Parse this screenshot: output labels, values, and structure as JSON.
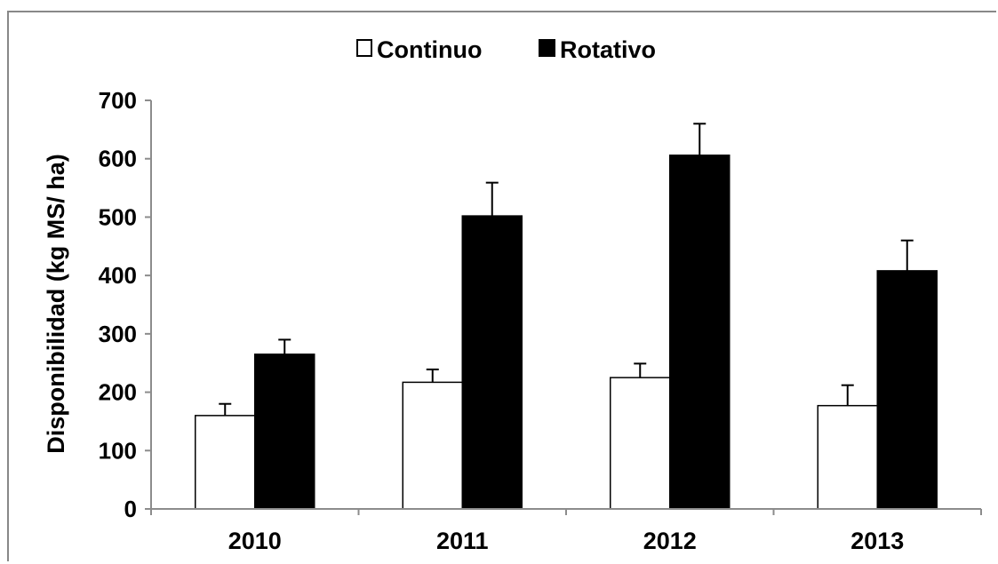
{
  "chart_data": {
    "type": "bar",
    "categories": [
      "2010",
      "2011",
      "2012",
      "2013"
    ],
    "series": [
      {
        "name": "Continuo",
        "values": [
          160,
          217,
          225,
          177
        ],
        "errors": [
          20,
          22,
          24,
          35
        ],
        "color": "#ffffff"
      },
      {
        "name": "Rotativo",
        "values": [
          265,
          502,
          606,
          408
        ],
        "errors": [
          25,
          57,
          54,
          52
        ],
        "color": "#000000"
      }
    ],
    "title": "",
    "xlabel": "",
    "ylabel": "Disponibilidad (kg MS/ ha)",
    "ylim": [
      0,
      700
    ],
    "yticks": [
      "0",
      "100",
      "200",
      "300",
      "400",
      "500",
      "600",
      "700"
    ],
    "grid": false,
    "legend_position": "top-center",
    "error_bars": "upper"
  }
}
